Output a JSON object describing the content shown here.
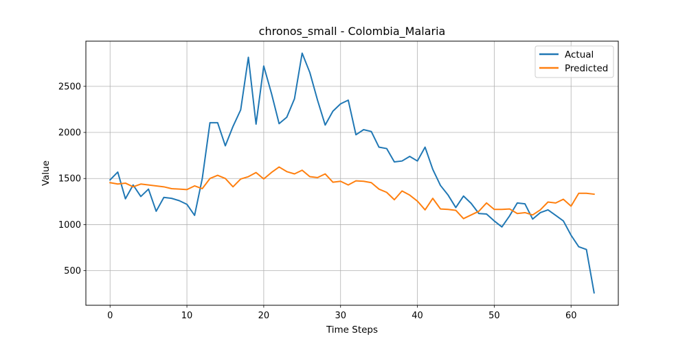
{
  "chart_data": {
    "type": "line",
    "title": "chronos_small - Colombia_Malaria",
    "xlabel": "Time Steps",
    "ylabel": "Value",
    "xlim": [
      -3.15,
      66.15
    ],
    "ylim": [
      125,
      2990
    ],
    "x_ticks": [
      0,
      10,
      20,
      30,
      40,
      50,
      60
    ],
    "y_ticks": [
      500,
      1000,
      1500,
      2000,
      2500
    ],
    "grid": true,
    "legend_position": "top-right",
    "series": [
      {
        "name": "Actual",
        "color": "#1f77b4",
        "values": [
          1485,
          1570,
          1280,
          1430,
          1305,
          1385,
          1145,
          1295,
          1285,
          1260,
          1220,
          1100,
          1500,
          2105,
          2105,
          1855,
          2065,
          2245,
          2815,
          2090,
          2720,
          2425,
          2095,
          2165,
          2365,
          2860,
          2650,
          2350,
          2080,
          2230,
          2310,
          2350,
          1975,
          2030,
          2010,
          1840,
          1825,
          1680,
          1690,
          1740,
          1690,
          1840,
          1600,
          1425,
          1320,
          1185,
          1310,
          1230,
          1120,
          1115,
          1040,
          975,
          1095,
          1235,
          1225,
          1060,
          1130,
          1160,
          1100,
          1040,
          885,
          760,
          730,
          260
        ]
      },
      {
        "name": "Predicted",
        "color": "#ff7f0e",
        "values": [
          1455,
          1440,
          1450,
          1410,
          1440,
          1430,
          1420,
          1410,
          1390,
          1385,
          1380,
          1420,
          1390,
          1500,
          1535,
          1500,
          1410,
          1495,
          1520,
          1565,
          1495,
          1565,
          1625,
          1575,
          1550,
          1590,
          1520,
          1510,
          1550,
          1460,
          1470,
          1430,
          1475,
          1470,
          1455,
          1385,
          1350,
          1270,
          1365,
          1320,
          1255,
          1160,
          1285,
          1170,
          1165,
          1155,
          1065,
          1105,
          1145,
          1235,
          1165,
          1165,
          1170,
          1120,
          1130,
          1105,
          1160,
          1245,
          1235,
          1275,
          1200,
          1340,
          1340,
          1330
        ]
      }
    ]
  }
}
